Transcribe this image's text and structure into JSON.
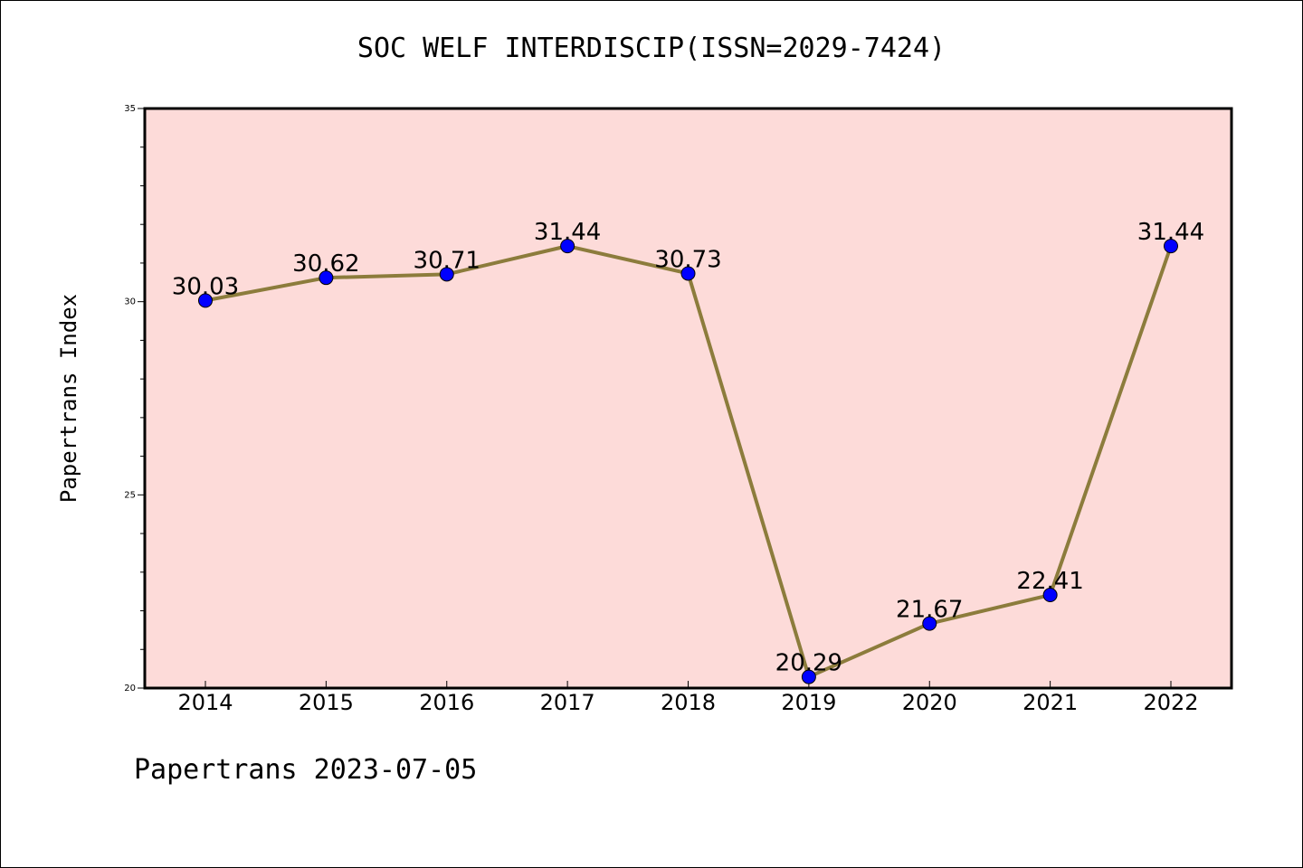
{
  "chart_data": {
    "type": "line",
    "title": "SOC WELF INTERDISCIP(ISSN=2029-7424)",
    "xlabel": "",
    "ylabel": "Papertrans Index",
    "categories": [
      "2014",
      "2015",
      "2016",
      "2017",
      "2018",
      "2019",
      "2020",
      "2021",
      "2022"
    ],
    "values": [
      30.03,
      30.62,
      30.71,
      31.44,
      30.73,
      20.29,
      21.67,
      22.41,
      31.44
    ],
    "data_labels": [
      "30.03",
      "30.62",
      "30.71",
      "31.44",
      "30.73",
      "20.29",
      "21.67",
      "22.41",
      "31.44"
    ],
    "ylim": [
      20,
      35
    ],
    "yticks": [
      "20",
      "25",
      "30",
      "35"
    ],
    "grid": false,
    "colors": {
      "plot_background": "#fddbd9",
      "line": "#8c7c3c",
      "marker": "#0000ff"
    }
  },
  "footer": "Papertrans 2023-07-05"
}
